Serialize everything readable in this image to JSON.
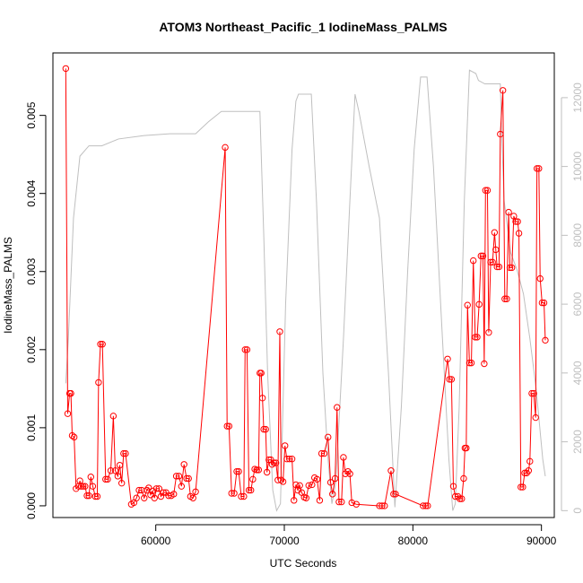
{
  "chart_data": {
    "type": "line",
    "title": "ATOM3 Northeast_Pacific_1 IodineMass_PALMS",
    "xlabel": "UTC Seconds",
    "ylabel": "IodineMass_PALMS",
    "xlim": [
      52000,
      91000
    ],
    "ylim": [
      -0.00015,
      0.0058
    ],
    "y2lim": [
      -200,
      13300
    ],
    "x_ticks": [
      60000,
      70000,
      80000,
      90000
    ],
    "y_ticks": [
      0.0,
      0.001,
      0.002,
      0.003,
      0.004,
      0.005
    ],
    "y_tick_labels": [
      "0.000",
      "0.001",
      "0.002",
      "0.003",
      "0.004",
      "0.005"
    ],
    "y2_ticks": [
      0,
      2000,
      4000,
      6000,
      8000,
      10000,
      12000
    ],
    "grid": false,
    "legend": "none",
    "series": [
      {
        "color": "#ff0000",
        "markers": "open-circle",
        "axis": "left",
        "points": [
          [
            53000,
            0.0056
          ],
          [
            53150,
            0.00118
          ],
          [
            53300,
            0.00144
          ],
          [
            53400,
            0.00144
          ],
          [
            53500,
            0.0009
          ],
          [
            53650,
            0.00088
          ],
          [
            53800,
            0.00022
          ],
          [
            54000,
            0.00025
          ],
          [
            54100,
            0.00032
          ],
          [
            54200,
            0.00025
          ],
          [
            54350,
            0.00025
          ],
          [
            54500,
            0.00025
          ],
          [
            54650,
            0.00013
          ],
          [
            54800,
            0.00013
          ],
          [
            54950,
            0.00037
          ],
          [
            55100,
            0.00025
          ],
          [
            55300,
            0.00012
          ],
          [
            55450,
            0.00012
          ],
          [
            55550,
            0.00158
          ],
          [
            55700,
            0.00207
          ],
          [
            55850,
            0.00207
          ],
          [
            56100,
            0.00034
          ],
          [
            56250,
            0.00034
          ],
          [
            56500,
            0.00045
          ],
          [
            56700,
            0.00115
          ],
          [
            56850,
            0.00045
          ],
          [
            57050,
            0.00038
          ],
          [
            57200,
            0.00052
          ],
          [
            57350,
            0.00029
          ],
          [
            57500,
            0.00067
          ],
          [
            57650,
            0.00067
          ],
          [
            58100,
            2e-05
          ],
          [
            58300,
            4e-05
          ],
          [
            58500,
            0.0001
          ],
          [
            58700,
            0.0002
          ],
          [
            58900,
            0.0002
          ],
          [
            59100,
            0.0001
          ],
          [
            59300,
            0.0002
          ],
          [
            59450,
            0.00023
          ],
          [
            59600,
            0.00014
          ],
          [
            59750,
            0.00019
          ],
          [
            59900,
            0.0001
          ],
          [
            60050,
            0.00022
          ],
          [
            60250,
            0.00022
          ],
          [
            60400,
            0.00012
          ],
          [
            60600,
            0.00017
          ],
          [
            60800,
            0.00017
          ],
          [
            61000,
            0.00013
          ],
          [
            61200,
            0.00013
          ],
          [
            61400,
            0.00015
          ],
          [
            61600,
            0.00038
          ],
          [
            61800,
            0.00038
          ],
          [
            62000,
            0.00025
          ],
          [
            62200,
            0.00053
          ],
          [
            62400,
            0.00035
          ],
          [
            62550,
            0.00035
          ],
          [
            62700,
            0.00012
          ],
          [
            62900,
            0.0001
          ],
          [
            63100,
            0.00018
          ],
          [
            65400,
            0.00459
          ],
          [
            65550,
            0.00102
          ],
          [
            65700,
            0.00102
          ],
          [
            65900,
            0.00016
          ],
          [
            66100,
            0.00016
          ],
          [
            66300,
            0.00044
          ],
          [
            66450,
            0.00044
          ],
          [
            66650,
            0.00012
          ],
          [
            66850,
            0.00012
          ],
          [
            66950,
            0.002
          ],
          [
            67100,
            0.002
          ],
          [
            67250,
            0.0002
          ],
          [
            67400,
            0.0002
          ],
          [
            67550,
            0.00034
          ],
          [
            67700,
            0.00047
          ],
          [
            67850,
            0.00046
          ],
          [
            68000,
            0.00046
          ],
          [
            68100,
            0.0017
          ],
          [
            68200,
            0.0017
          ],
          [
            68300,
            0.00138
          ],
          [
            68400,
            0.00098
          ],
          [
            68550,
            0.00098
          ],
          [
            68650,
            0.00043
          ],
          [
            68800,
            0.00059
          ],
          [
            68950,
            0.00059
          ],
          [
            69050,
            0.00053
          ],
          [
            69200,
            0.00055
          ],
          [
            69350,
            0.00055
          ],
          [
            69500,
            0.00033
          ],
          [
            69650,
            0.00223
          ],
          [
            69750,
            0.00033
          ],
          [
            69900,
            0.00031
          ],
          [
            70050,
            0.00077
          ],
          [
            70200,
            0.0006
          ],
          [
            70400,
            0.0006
          ],
          [
            70600,
            0.0006
          ],
          [
            70750,
            7e-05
          ],
          [
            70900,
            0.00027
          ],
          [
            71050,
            0.0002
          ],
          [
            71200,
            0.00026
          ],
          [
            71350,
            0.00017
          ],
          [
            71550,
            0.00011
          ],
          [
            71700,
            0.0001
          ],
          [
            71900,
            0.00026
          ],
          [
            72150,
            0.00027
          ],
          [
            72350,
            0.00036
          ],
          [
            72550,
            0.00034
          ],
          [
            72750,
            7e-05
          ],
          [
            72900,
            0.00067
          ],
          [
            73100,
            0.00067
          ],
          [
            73400,
            0.00088
          ],
          [
            73600,
            0.0003
          ],
          [
            73750,
            0.00015
          ],
          [
            73950,
            0.00035
          ],
          [
            74100,
            0.00126
          ],
          [
            74250,
            5e-05
          ],
          [
            74450,
            5e-05
          ],
          [
            74600,
            0.00062
          ],
          [
            74750,
            0.00041
          ],
          [
            74950,
            0.00044
          ],
          [
            75100,
            0.00041
          ],
          [
            75250,
            4e-05
          ],
          [
            75600,
            2e-05
          ],
          [
            77400,
            0.0
          ],
          [
            77600,
            0.0
          ],
          [
            77800,
            0.0
          ],
          [
            78300,
            0.00045
          ],
          [
            78500,
            0.00015
          ],
          [
            78650,
            0.00015
          ],
          [
            80800,
            0.0
          ],
          [
            81000,
            0.0
          ],
          [
            81150,
            0.0
          ],
          [
            82700,
            0.00188
          ],
          [
            82850,
            0.00162
          ],
          [
            83000,
            0.00162
          ],
          [
            83150,
            0.00025
          ],
          [
            83300,
            0.00012
          ],
          [
            83500,
            0.00012
          ],
          [
            83650,
            9e-05
          ],
          [
            83800,
            9e-05
          ],
          [
            83950,
            0.00035
          ],
          [
            84050,
            0.00074
          ],
          [
            84150,
            0.00074
          ],
          [
            84250,
            0.00257
          ],
          [
            84400,
            0.00183
          ],
          [
            84550,
            0.00183
          ],
          [
            84700,
            0.00314
          ],
          [
            84850,
            0.00216
          ],
          [
            85000,
            0.00216
          ],
          [
            85150,
            0.00258
          ],
          [
            85300,
            0.0032
          ],
          [
            85450,
            0.0032
          ],
          [
            85550,
            0.00182
          ],
          [
            85650,
            0.00404
          ],
          [
            85800,
            0.00404
          ],
          [
            85900,
            0.00222
          ],
          [
            86050,
            0.00312
          ],
          [
            86200,
            0.00312
          ],
          [
            86350,
            0.0035
          ],
          [
            86450,
            0.00328
          ],
          [
            86550,
            0.00306
          ],
          [
            86700,
            0.00306
          ],
          [
            86800,
            0.00476
          ],
          [
            87000,
            0.00532
          ],
          [
            87150,
            0.00265
          ],
          [
            87300,
            0.00265
          ],
          [
            87450,
            0.00376
          ],
          [
            87550,
            0.00305
          ],
          [
            87700,
            0.00305
          ],
          [
            87850,
            0.00371
          ],
          [
            88000,
            0.00364
          ],
          [
            88150,
            0.00364
          ],
          [
            88250,
            0.00349
          ],
          [
            88400,
            0.00024
          ],
          [
            88550,
            0.00024
          ],
          [
            88700,
            0.00042
          ],
          [
            88850,
            0.00042
          ],
          [
            89000,
            0.00045
          ],
          [
            89100,
            0.00057
          ],
          [
            89250,
            0.00144
          ],
          [
            89400,
            0.00144
          ],
          [
            89550,
            0.00113
          ],
          [
            89650,
            0.00432
          ],
          [
            89800,
            0.00432
          ],
          [
            89900,
            0.00291
          ],
          [
            90050,
            0.0026
          ],
          [
            90200,
            0.0026
          ],
          [
            90300,
            0.00212
          ]
        ]
      },
      {
        "color": "#bfbfbf",
        "markers": "none",
        "axis": "right",
        "points": [
          [
            53000,
            3700
          ],
          [
            53200,
            5000
          ],
          [
            53600,
            8500
          ],
          [
            54100,
            10300
          ],
          [
            54800,
            10600
          ],
          [
            55800,
            10600
          ],
          [
            57100,
            10800
          ],
          [
            59100,
            10900
          ],
          [
            61100,
            10950
          ],
          [
            63100,
            10950
          ],
          [
            64100,
            11300
          ],
          [
            65100,
            11600
          ],
          [
            66100,
            11600
          ],
          [
            68100,
            11600
          ],
          [
            68400,
            8000
          ],
          [
            68700,
            4000
          ],
          [
            69100,
            600
          ],
          [
            69400,
            0
          ],
          [
            69700,
            200
          ],
          [
            70100,
            6000
          ],
          [
            70600,
            10500
          ],
          [
            70900,
            11900
          ],
          [
            71100,
            12100
          ],
          [
            71600,
            12100
          ],
          [
            72100,
            12100
          ],
          [
            72500,
            9000
          ],
          [
            73000,
            4000
          ],
          [
            73400,
            1500
          ],
          [
            73700,
            200
          ],
          [
            74000,
            800
          ],
          [
            74600,
            5000
          ],
          [
            75100,
            9000
          ],
          [
            75500,
            12100
          ],
          [
            75800,
            11600
          ],
          [
            76600,
            10000
          ],
          [
            77400,
            8500
          ],
          [
            78100,
            4000
          ],
          [
            78600,
            100
          ],
          [
            79100,
            3000
          ],
          [
            79600,
            7000
          ],
          [
            80100,
            10500
          ],
          [
            80600,
            12600
          ],
          [
            81100,
            12600
          ],
          [
            81600,
            10000
          ],
          [
            82300,
            5000
          ],
          [
            82800,
            1500
          ],
          [
            83100,
            0
          ],
          [
            83300,
            200
          ],
          [
            83600,
            3000
          ],
          [
            84000,
            9000
          ],
          [
            84400,
            12800
          ],
          [
            84900,
            12700
          ],
          [
            85100,
            12500
          ],
          [
            85600,
            12400
          ],
          [
            86100,
            12400
          ],
          [
            86800,
            12400
          ],
          [
            86900,
            11000
          ],
          [
            87100,
            9000
          ],
          [
            87600,
            7500
          ],
          [
            88100,
            7000
          ],
          [
            88600,
            6300
          ],
          [
            89100,
            5000
          ],
          [
            89600,
            3500
          ],
          [
            90100,
            1500
          ],
          [
            90300,
            1000
          ]
        ]
      }
    ]
  }
}
